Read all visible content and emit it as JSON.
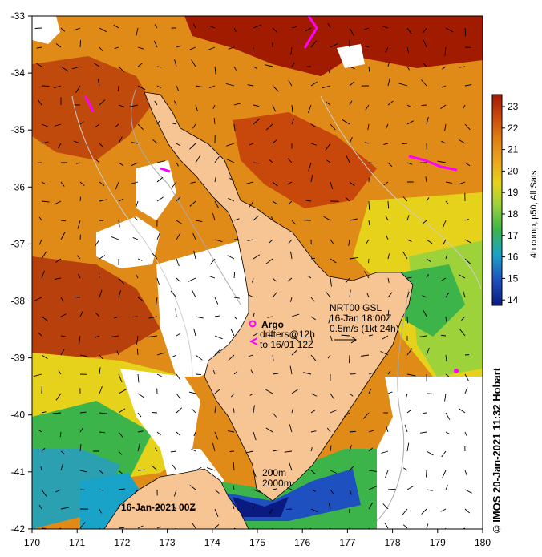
{
  "map": {
    "date_label": "16-Jan-2021 00Z",
    "colorbar_label": "4h comp, p50, All Sats",
    "credit": "© IMOS 20-Jan-2021 11:32 Hobart",
    "legend": {
      "argo_title": "Argo",
      "argo_line1": "drifters@12h",
      "argo_line2": "to 16/01 12Z",
      "current_title": "NRT00 GSL",
      "current_line1": "16-Jan 18:00Z",
      "current_line2": "0.5m/s (1kt 24h)",
      "isobath1": "200m",
      "isobath2": "2000m"
    },
    "lon_ticks": [
      "170",
      "171",
      "172",
      "173",
      "174",
      "175",
      "176",
      "177",
      "178",
      "179",
      "180"
    ],
    "lat_ticks": [
      "-33",
      "-34",
      "-35",
      "-36",
      "-37",
      "-38",
      "-39",
      "-40",
      "-41",
      "-42"
    ],
    "colorbar_ticks": [
      "23",
      "22",
      "21",
      "20",
      "19",
      "18",
      "17",
      "16",
      "15",
      "14"
    ],
    "colors": {
      "land": "#f7c493",
      "sst_23": "#a01b00",
      "sst_22": "#c8470a",
      "sst_21": "#e07a10",
      "sst_20": "#eaa81e",
      "sst_19": "#e6d21a",
      "sst_18": "#9ed23a",
      "sst_17": "#3cb44a",
      "sst_16": "#1aa3c8",
      "sst_15": "#1e50c0",
      "sst_14": "#0a1a80",
      "argo": "#ff00ff"
    }
  }
}
